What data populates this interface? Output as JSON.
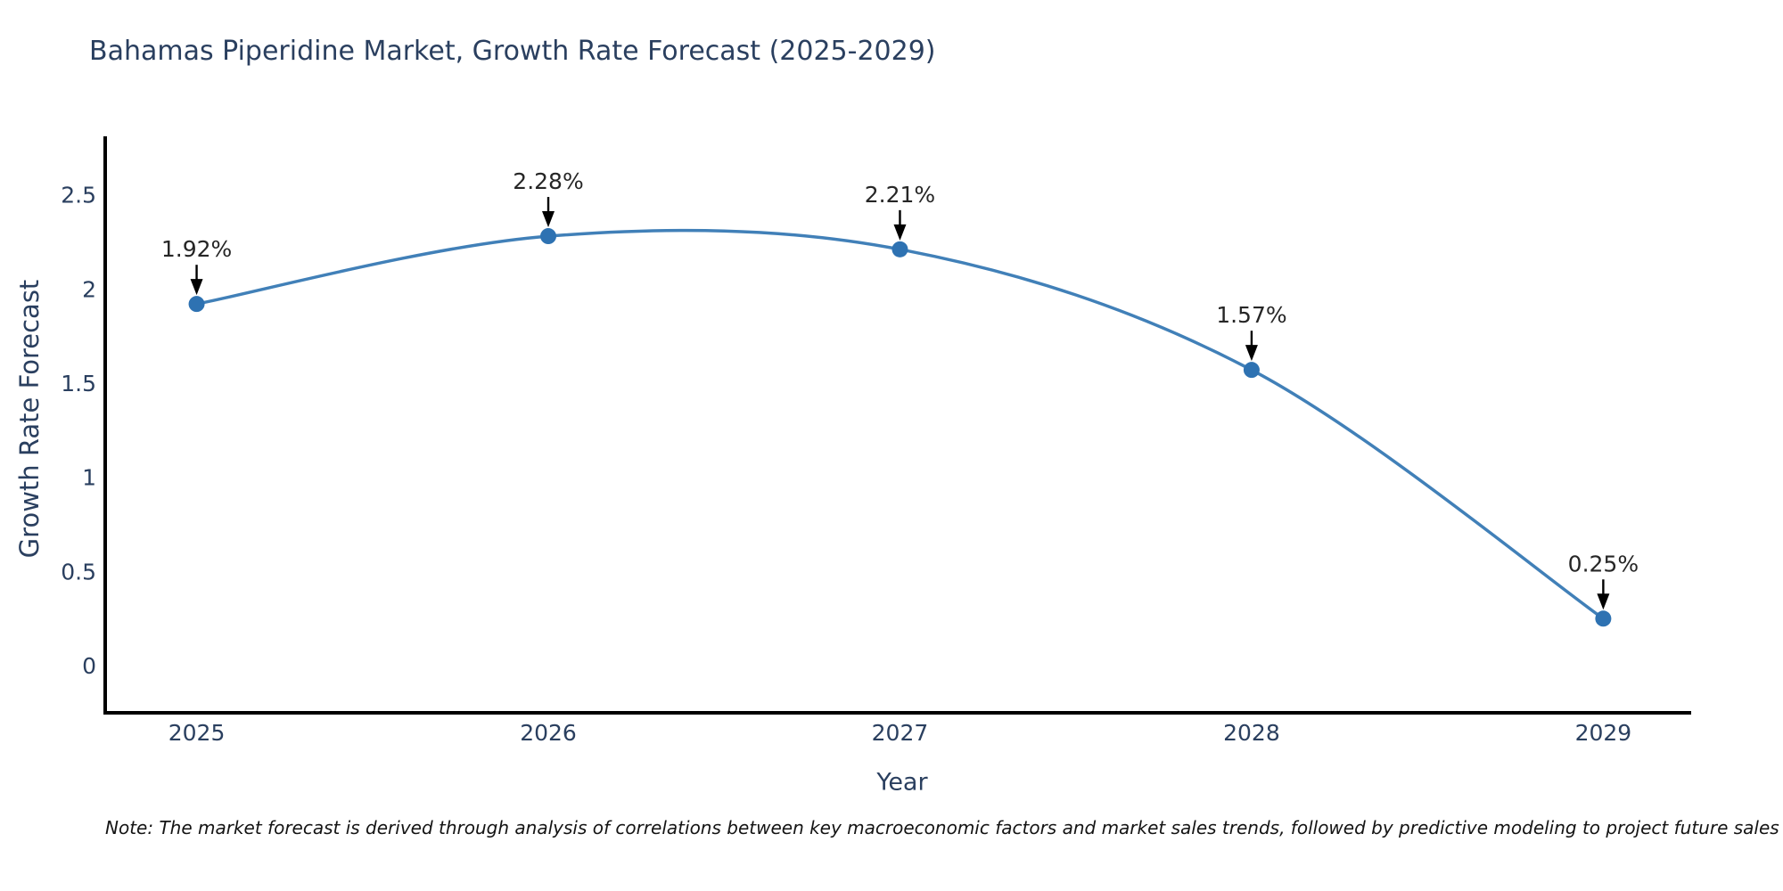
{
  "page": {
    "title": "Bahamas Piperidine Market, Growth Rate Forecast (2025-2029)",
    "note": "Note: The market forecast is derived through analysis of correlations between key macroeconomic factors and market sales trends, followed by predictive modeling to project future sales"
  },
  "chart_data": {
    "type": "line",
    "line_shape": "spline",
    "title": "Bahamas Piperidine Market, Growth Rate Forecast (2025-2029)",
    "xlabel": "Year",
    "ylabel": "Growth Rate Forecast",
    "categories": [
      2025,
      2026,
      2027,
      2028,
      2029
    ],
    "values": [
      1.92,
      2.28,
      2.21,
      1.57,
      0.25
    ],
    "point_labels": [
      "1.92%",
      "2.28%",
      "2.21%",
      "1.57%",
      "0.25%"
    ],
    "yticks": [
      0,
      0.5,
      1,
      1.5,
      2,
      2.5
    ],
    "ytick_labels": [
      "0",
      "0.5",
      "1",
      "1.5",
      "2",
      "2.5"
    ],
    "xlim": [
      2024.74,
      2029.25
    ],
    "ylim": [
      -0.25,
      2.81
    ],
    "grid": false,
    "legend": false,
    "marker": "circle",
    "annotation_style": "label-above-with-down-arrow"
  },
  "colors": {
    "background": "#ffffff",
    "line": "#4180b8",
    "marker": "#2e72b2",
    "axis": "#000000",
    "arrow": "#000000",
    "tick_text": "#2a3f5f",
    "title_text": "#2a3f5f",
    "annotation_text": "#262626"
  }
}
